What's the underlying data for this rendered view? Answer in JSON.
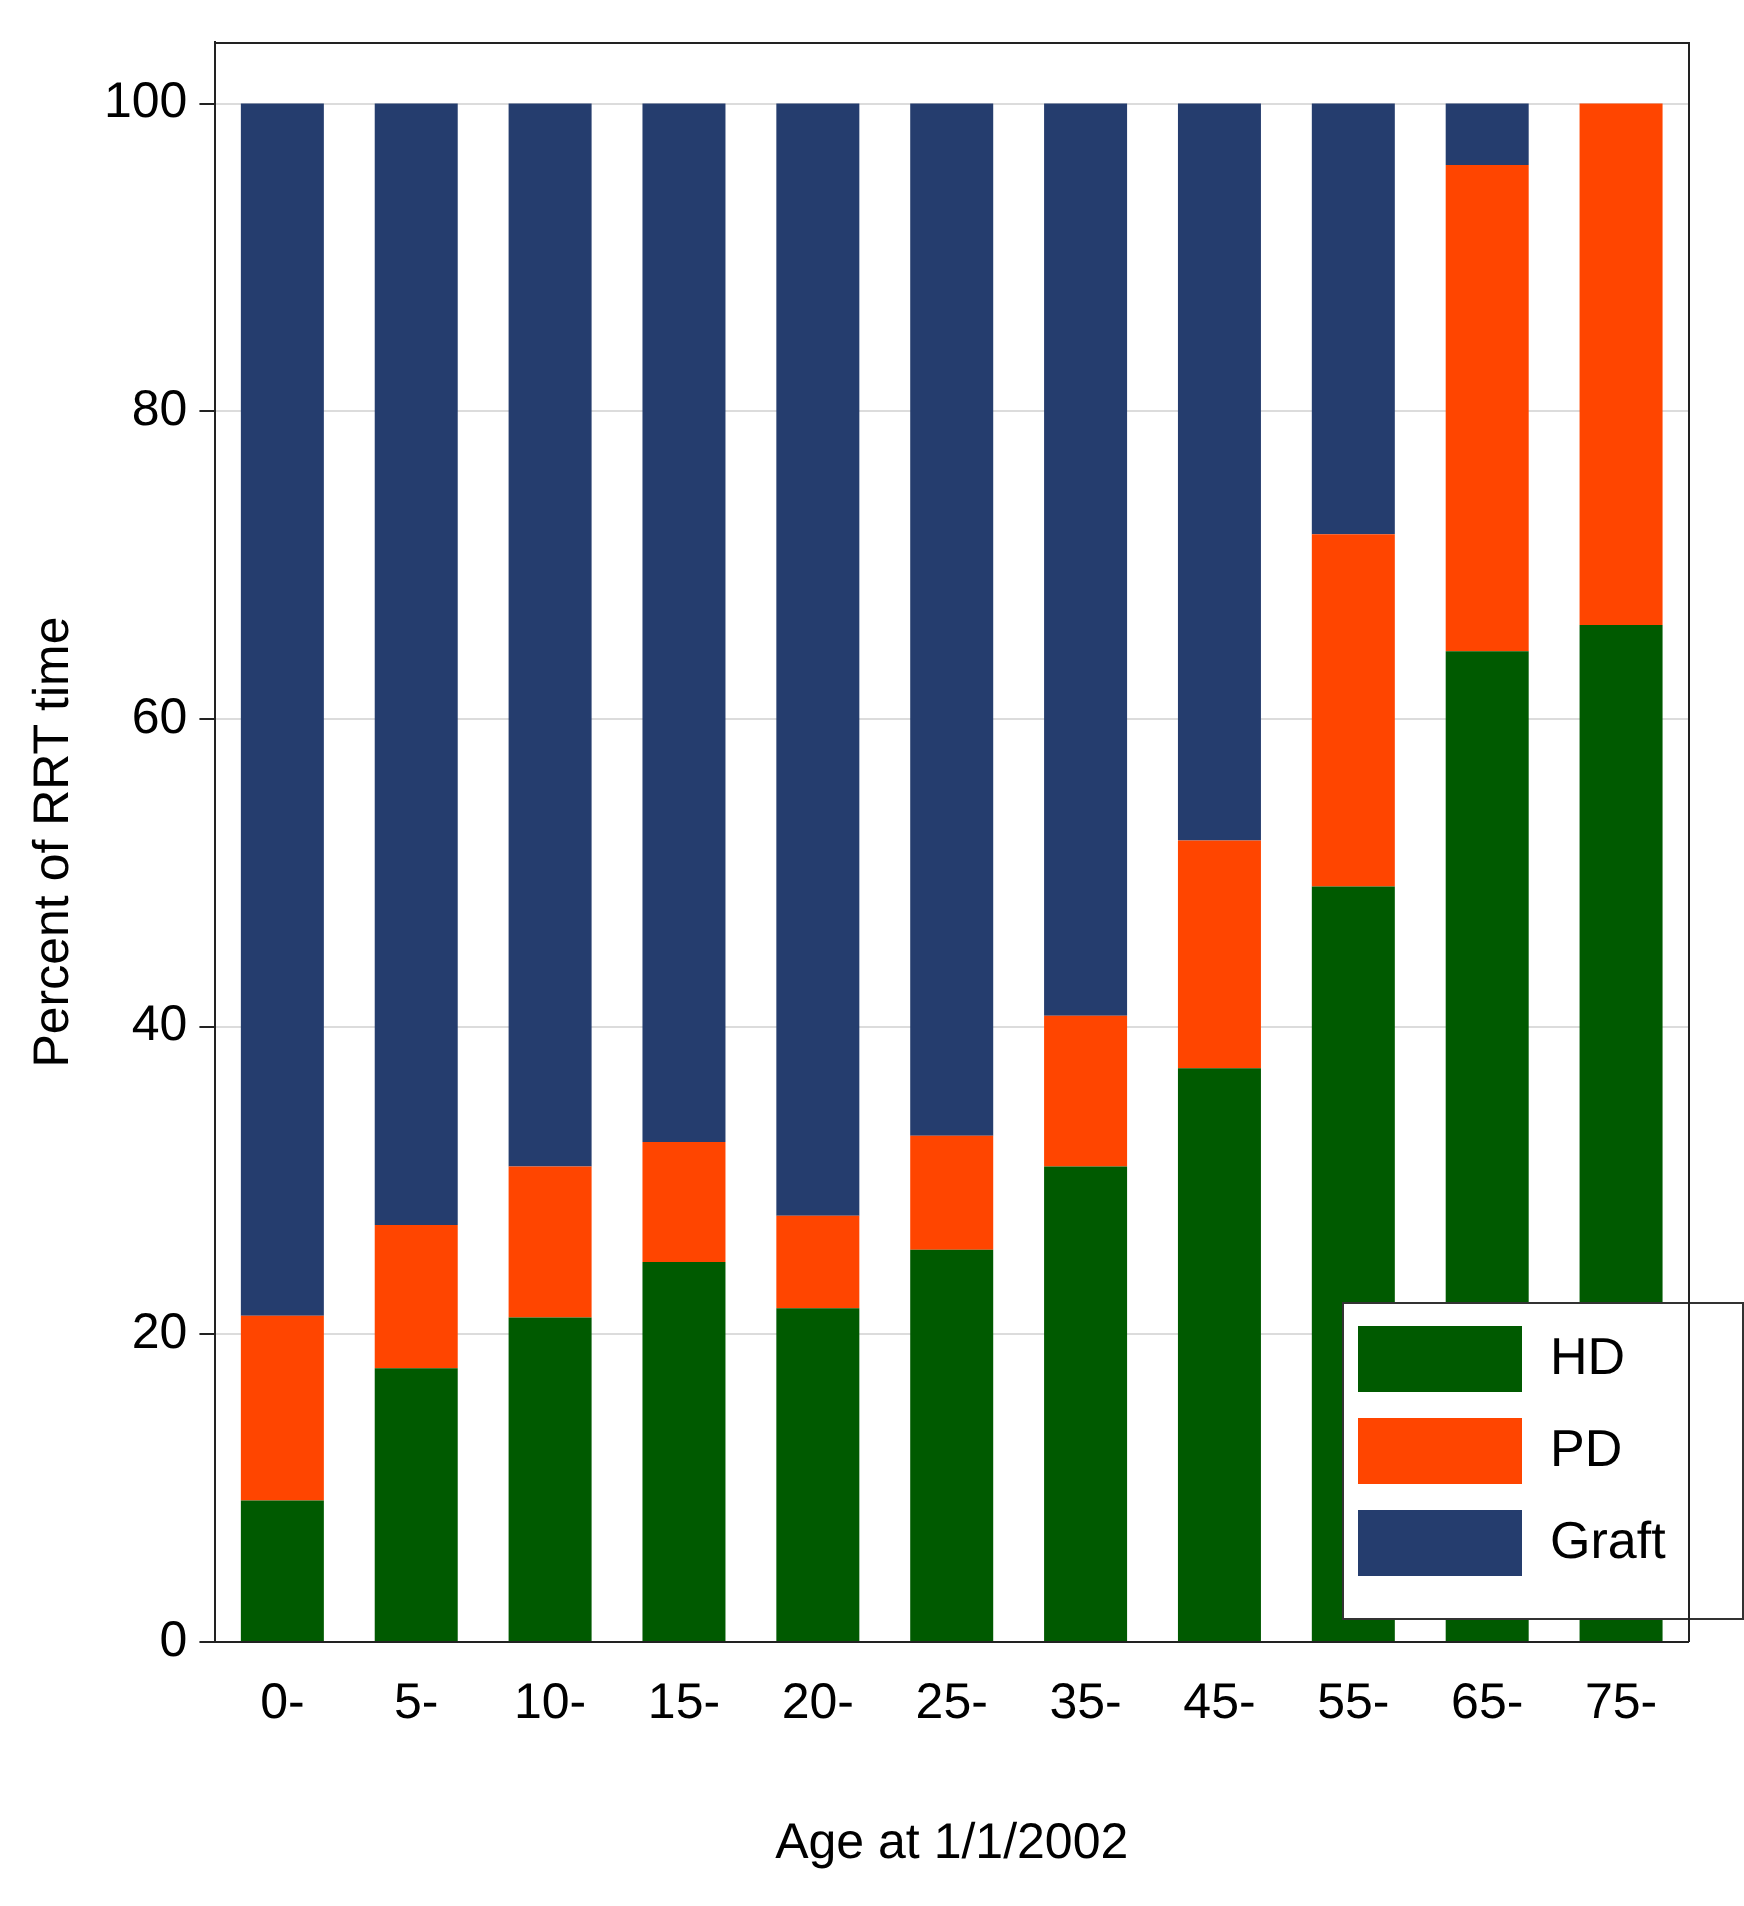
{
  "chart_data": {
    "type": "bar",
    "stacked": true,
    "xlabel": "Age at 1/1/2002",
    "ylabel": "Percent of RRT time",
    "categories": [
      "0-",
      "5-",
      "10-",
      "15-",
      "20-",
      "25-",
      "35-",
      "45-",
      "55-",
      "65-",
      "75-"
    ],
    "series": [
      {
        "name": "HD",
        "color": "#005a00",
        "values": [
          9.2,
          17.8,
          21.1,
          24.7,
          21.7,
          25.5,
          30.9,
          37.3,
          49.1,
          64.4,
          66.1
        ]
      },
      {
        "name": "PD",
        "color": "#ff4500",
        "values": [
          12.0,
          9.3,
          9.8,
          7.8,
          6.0,
          7.4,
          9.8,
          14.8,
          22.9,
          31.6,
          33.9
        ]
      },
      {
        "name": "Graft",
        "color": "#253d6e",
        "values": [
          78.8,
          72.9,
          69.1,
          67.5,
          72.3,
          67.1,
          59.3,
          47.9,
          28.0,
          4.0,
          0
        ]
      }
    ],
    "ylim": [
      0,
      104
    ],
    "yticks": [
      0,
      20,
      40,
      60,
      80,
      100
    ],
    "grid": "y",
    "legend": "bottom right"
  }
}
